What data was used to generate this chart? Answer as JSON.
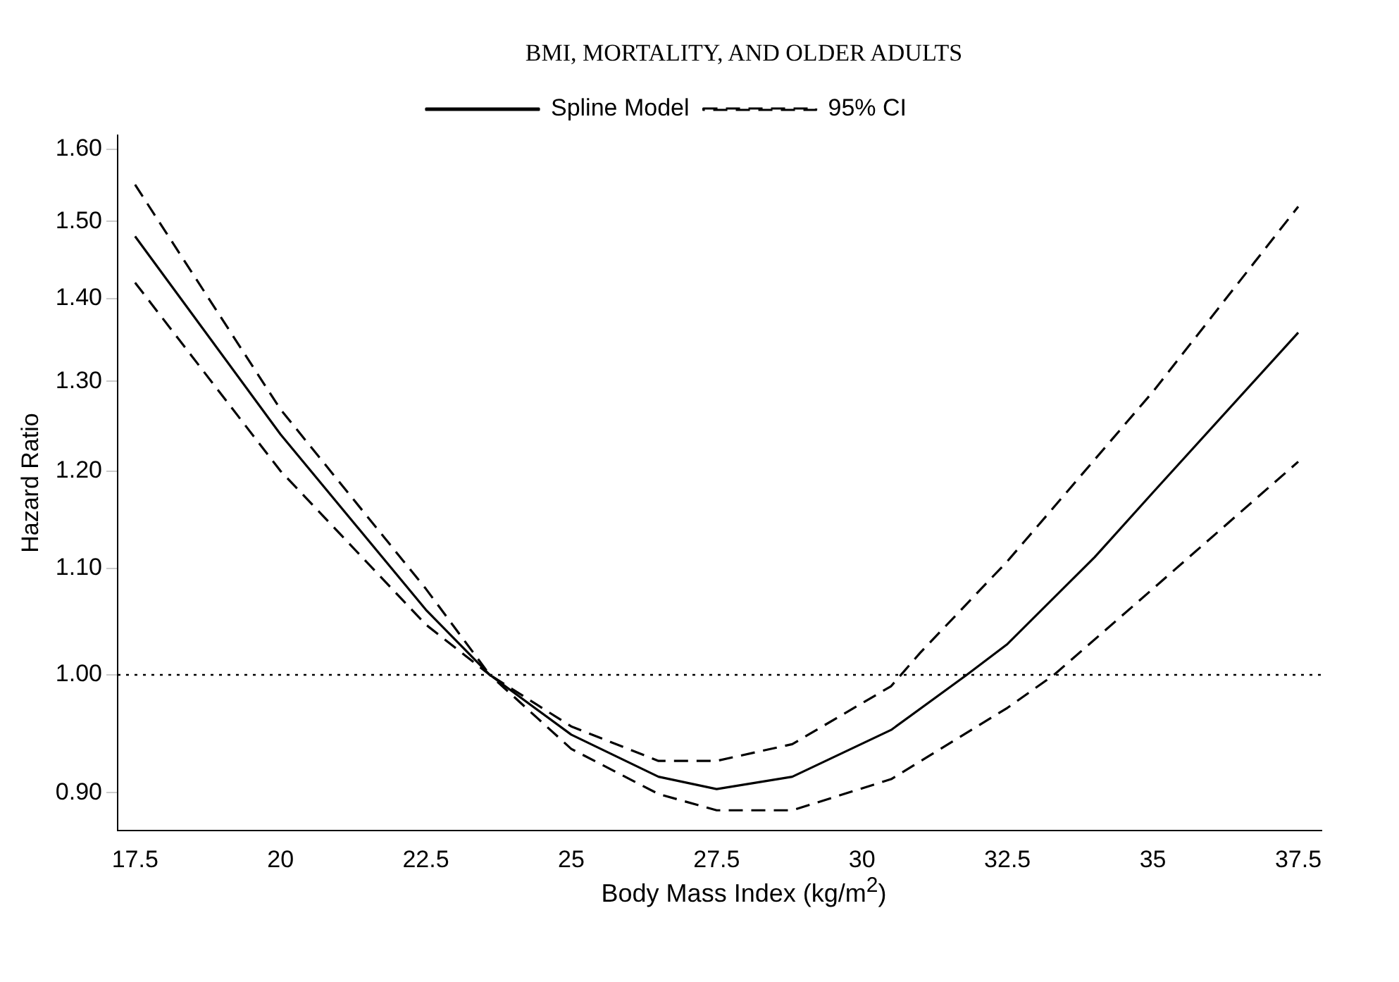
{
  "chart_data": {
    "type": "line",
    "title": "BMI, MORTALITY, AND OLDER ADULTS",
    "xlabel": "Body Mass Index (kg/m$^{2}$)",
    "ylabel": "Hazard Ratio",
    "log": "y",
    "xlim": [
      17.2,
      37.9
    ],
    "xticks": [
      17.5,
      20,
      22.5,
      25,
      27.5,
      30,
      32.5,
      35,
      37.5
    ],
    "ylim": [
      0.87,
      1.62
    ],
    "yticks": [
      {
        "value": 0.9,
        "label": "0.90"
      },
      {
        "value": 1.0,
        "label": "1.00"
      },
      {
        "value": 1.1,
        "label": "1.10"
      },
      {
        "value": 1.2,
        "label": "1.20"
      },
      {
        "value": 1.3,
        "label": "1.30"
      },
      {
        "value": 1.4,
        "label": "1.40"
      },
      {
        "value": 1.5,
        "label": "1.50"
      },
      {
        "value": 1.6,
        "label": "1.60"
      }
    ],
    "grid": false,
    "legend": "top",
    "marker": "none",
    "ref_lines": [
      {
        "axis": "y",
        "value": 1.0,
        "color": "#000000",
        "line_style": "dotted"
      }
    ],
    "series": [
      {
        "name": "Spline Model",
        "color": "#000000",
        "line_style": "solid",
        "x": [
          17.5,
          20,
          22.5,
          23.6,
          25,
          26.5,
          27.5,
          28.8,
          30.5,
          31.8,
          32.5,
          34,
          35,
          37.5
        ],
        "values": [
          1.48,
          1.24,
          1.06,
          1.0,
          0.948,
          0.913,
          0.903,
          0.913,
          0.952,
          1.0,
          1.028,
          1.111,
          1.177,
          1.358
        ]
      },
      {
        "name": "95% CI",
        "color": "#000000",
        "line_style": "dashed",
        "x": [
          17.5,
          20,
          22.5,
          23.6,
          25,
          26.5,
          27.5,
          28.8,
          30.5,
          31,
          32.5,
          35,
          37.5
        ],
        "values": [
          1.55,
          1.268,
          1.08,
          1.0,
          0.955,
          0.926,
          0.926,
          0.94,
          0.99,
          1.02,
          1.107,
          1.288,
          1.52
        ]
      },
      {
        "color": "#000000",
        "line_style": "dashed",
        "x": [
          17.5,
          20,
          22.5,
          23.6,
          25,
          26.5,
          27.5,
          28.8,
          30.5,
          32.5,
          33.3,
          35,
          37.5
        ],
        "values": [
          1.42,
          1.2,
          1.046,
          1.0,
          0.936,
          0.899,
          0.886,
          0.886,
          0.911,
          0.971,
          1.0,
          1.08,
          1.21
        ]
      }
    ]
  }
}
